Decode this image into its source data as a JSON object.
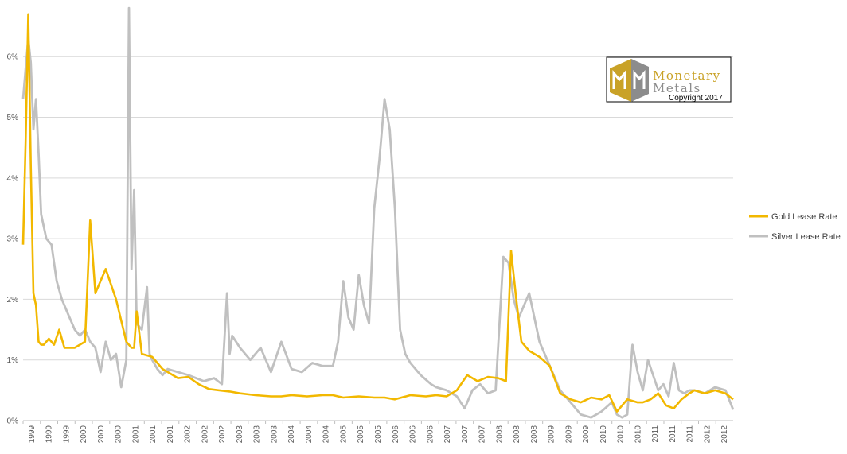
{
  "chart_data": {
    "type": "line",
    "title": "",
    "xlabel": "",
    "ylabel": "",
    "ylim": [
      0,
      6.75
    ],
    "xlim": [
      1999.0,
      2012.75
    ],
    "y_ticks": [
      "0%",
      "1%",
      "2%",
      "3%",
      "4%",
      "5%",
      "6%"
    ],
    "y_tick_values": [
      0,
      1,
      2,
      3,
      4,
      5,
      6
    ],
    "x_tick_labels": [
      "1999",
      "1999",
      "1999",
      "2000",
      "2000",
      "2000",
      "2001",
      "2001",
      "2001",
      "2002",
      "2002",
      "2002",
      "2003",
      "2003",
      "2003",
      "2004",
      "2004",
      "2004",
      "2005",
      "2005",
      "2005",
      "2006",
      "2006",
      "2006",
      "2007",
      "2007",
      "2007",
      "2008",
      "2008",
      "2008",
      "2009",
      "2009",
      "2009",
      "2010",
      "2010",
      "2010",
      "2011",
      "2011",
      "2011",
      "2012",
      "2012"
    ],
    "grid": "horizontal",
    "legend_position": "right",
    "series": [
      {
        "name": "Gold Lease Rate",
        "color": "#f2b800",
        "x": [
          1999.0,
          1999.05,
          1999.1,
          1999.15,
          1999.2,
          1999.25,
          1999.3,
          1999.35,
          1999.4,
          1999.5,
          1999.6,
          1999.7,
          1999.8,
          2000.0,
          2000.2,
          2000.3,
          2000.4,
          2000.6,
          2000.8,
          2001.0,
          2001.1,
          2001.15,
          2001.2,
          2001.3,
          2001.5,
          2001.7,
          2001.9,
          2002.0,
          2002.2,
          2002.4,
          2002.6,
          2002.8,
          2003.0,
          2003.2,
          2003.5,
          2003.8,
          2004.0,
          2004.2,
          2004.5,
          2004.8,
          2005.0,
          2005.2,
          2005.5,
          2005.8,
          2006.0,
          2006.2,
          2006.5,
          2006.8,
          2007.0,
          2007.2,
          2007.4,
          2007.6,
          2007.8,
          2008.0,
          2008.2,
          2008.35,
          2008.45,
          2008.55,
          2008.65,
          2008.8,
          2009.0,
          2009.2,
          2009.4,
          2009.6,
          2009.8,
          2010.0,
          2010.2,
          2010.35,
          2010.5,
          2010.7,
          2010.9,
          2011.0,
          2011.15,
          2011.3,
          2011.45,
          2011.6,
          2011.75,
          2011.9,
          2012.0,
          2012.2,
          2012.4,
          2012.6,
          2012.75
        ],
        "values": [
          2.9,
          4.6,
          6.7,
          4.2,
          2.1,
          1.9,
          1.3,
          1.25,
          1.25,
          1.35,
          1.25,
          1.5,
          1.2,
          1.2,
          1.3,
          3.3,
          2.1,
          2.5,
          2.0,
          1.3,
          1.2,
          1.2,
          1.8,
          1.1,
          1.05,
          0.85,
          0.75,
          0.7,
          0.72,
          0.6,
          0.52,
          0.5,
          0.48,
          0.45,
          0.42,
          0.4,
          0.4,
          0.42,
          0.4,
          0.42,
          0.42,
          0.38,
          0.4,
          0.38,
          0.38,
          0.35,
          0.42,
          0.4,
          0.42,
          0.4,
          0.5,
          0.75,
          0.65,
          0.72,
          0.7,
          0.65,
          2.8,
          2.0,
          1.3,
          1.15,
          1.05,
          0.9,
          0.45,
          0.35,
          0.3,
          0.38,
          0.35,
          0.42,
          0.15,
          0.35,
          0.3,
          0.3,
          0.35,
          0.45,
          0.25,
          0.2,
          0.35,
          0.45,
          0.5,
          0.45,
          0.5,
          0.45,
          0.35
        ]
      },
      {
        "name": "Silver Lease Rate",
        "color": "#c0c0c0",
        "x": [
          1999.0,
          1999.05,
          1999.1,
          1999.15,
          1999.2,
          1999.25,
          1999.3,
          1999.35,
          1999.45,
          1999.55,
          1999.65,
          1999.75,
          1999.85,
          2000.0,
          2000.1,
          2000.2,
          2000.3,
          2000.4,
          2000.5,
          2000.6,
          2000.7,
          2000.8,
          2000.9,
          2001.0,
          2001.05,
          2001.1,
          2001.15,
          2001.2,
          2001.3,
          2001.4,
          2001.45,
          2001.5,
          2001.6,
          2001.7,
          2001.8,
          2002.0,
          2002.2,
          2002.35,
          2002.5,
          2002.7,
          2002.85,
          2002.95,
          2003.0,
          2003.05,
          2003.2,
          2003.4,
          2003.6,
          2003.8,
          2004.0,
          2004.2,
          2004.4,
          2004.6,
          2004.8,
          2005.0,
          2005.1,
          2005.2,
          2005.3,
          2005.4,
          2005.5,
          2005.6,
          2005.7,
          2005.8,
          2005.9,
          2006.0,
          2006.1,
          2006.2,
          2006.3,
          2006.4,
          2006.5,
          2006.7,
          2006.9,
          2007.0,
          2007.2,
          2007.4,
          2007.55,
          2007.7,
          2007.85,
          2008.0,
          2008.15,
          2008.3,
          2008.4,
          2008.5,
          2008.6,
          2008.8,
          2009.0,
          2009.2,
          2009.4,
          2009.6,
          2009.8,
          2010.0,
          2010.2,
          2010.4,
          2010.5,
          2010.6,
          2010.7,
          2010.8,
          2010.9,
          2011.0,
          2011.1,
          2011.2,
          2011.3,
          2011.4,
          2011.5,
          2011.6,
          2011.7,
          2011.8,
          2011.9,
          2012.0,
          2012.2,
          2012.4,
          2012.6,
          2012.75
        ],
        "values": [
          5.3,
          5.8,
          6.3,
          5.9,
          4.8,
          5.3,
          4.4,
          3.4,
          3.0,
          2.9,
          2.3,
          2.0,
          1.8,
          1.5,
          1.4,
          1.5,
          1.3,
          1.2,
          0.8,
          1.3,
          1.0,
          1.1,
          0.55,
          1.0,
          6.8,
          2.5,
          3.8,
          1.6,
          1.5,
          2.2,
          1.1,
          1.0,
          0.85,
          0.75,
          0.85,
          0.8,
          0.75,
          0.7,
          0.65,
          0.7,
          0.6,
          2.1,
          1.1,
          1.4,
          1.2,
          1.0,
          1.2,
          0.8,
          1.3,
          0.85,
          0.8,
          0.95,
          0.9,
          0.9,
          1.3,
          2.3,
          1.7,
          1.5,
          2.4,
          1.9,
          1.6,
          3.5,
          4.3,
          5.3,
          4.8,
          3.5,
          1.5,
          1.1,
          0.95,
          0.75,
          0.6,
          0.55,
          0.5,
          0.4,
          0.2,
          0.5,
          0.6,
          0.45,
          0.5,
          2.7,
          2.6,
          2.0,
          1.7,
          2.1,
          1.3,
          0.9,
          0.5,
          0.3,
          0.1,
          0.05,
          0.15,
          0.3,
          0.1,
          0.05,
          0.1,
          1.25,
          0.8,
          0.5,
          1.0,
          0.75,
          0.5,
          0.6,
          0.4,
          0.95,
          0.5,
          0.45,
          0.5,
          0.5,
          0.45,
          0.55,
          0.5,
          0.18
        ]
      }
    ]
  },
  "logo": {
    "word_top": "Monetary",
    "word_bottom": "Metals",
    "copyright": "Copyright 2017",
    "gold_color": "#c9a227",
    "gray_color": "#8c8c8c"
  }
}
